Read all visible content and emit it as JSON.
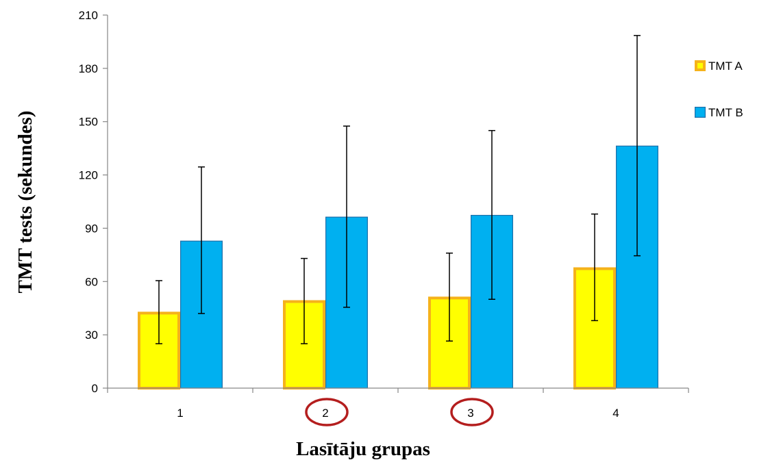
{
  "chart_data": {
    "type": "bar",
    "title": "",
    "xlabel": "Lasītāju grupas",
    "ylabel": "TMT tests (sekundes)",
    "categories": [
      "1",
      "2",
      "3",
      "4"
    ],
    "highlighted_categories": [
      "2",
      "3"
    ],
    "ylim": [
      0,
      210
    ],
    "yticks": [
      "0",
      "30",
      "60",
      "90",
      "120",
      "150",
      "180",
      "210"
    ],
    "grid": false,
    "legend_position": "right",
    "series": [
      {
        "name": "TMT A",
        "values": [
          43,
          49.5,
          51.5,
          68
        ],
        "err_low": [
          25,
          25,
          26.5,
          38
        ],
        "err_high": [
          60.5,
          73,
          76,
          98
        ],
        "fill": "#ffff00",
        "stroke": "#f5b21b"
      },
      {
        "name": "TMT B",
        "values": [
          83,
          96.5,
          97.5,
          136.5
        ],
        "err_low": [
          42,
          45.5,
          50,
          74.5
        ],
        "err_high": [
          124.5,
          147.5,
          145,
          198.5
        ],
        "fill": "#00b0f0",
        "stroke": "#1f6fa8"
      }
    ],
    "highlight_color": "#b41e1e"
  }
}
